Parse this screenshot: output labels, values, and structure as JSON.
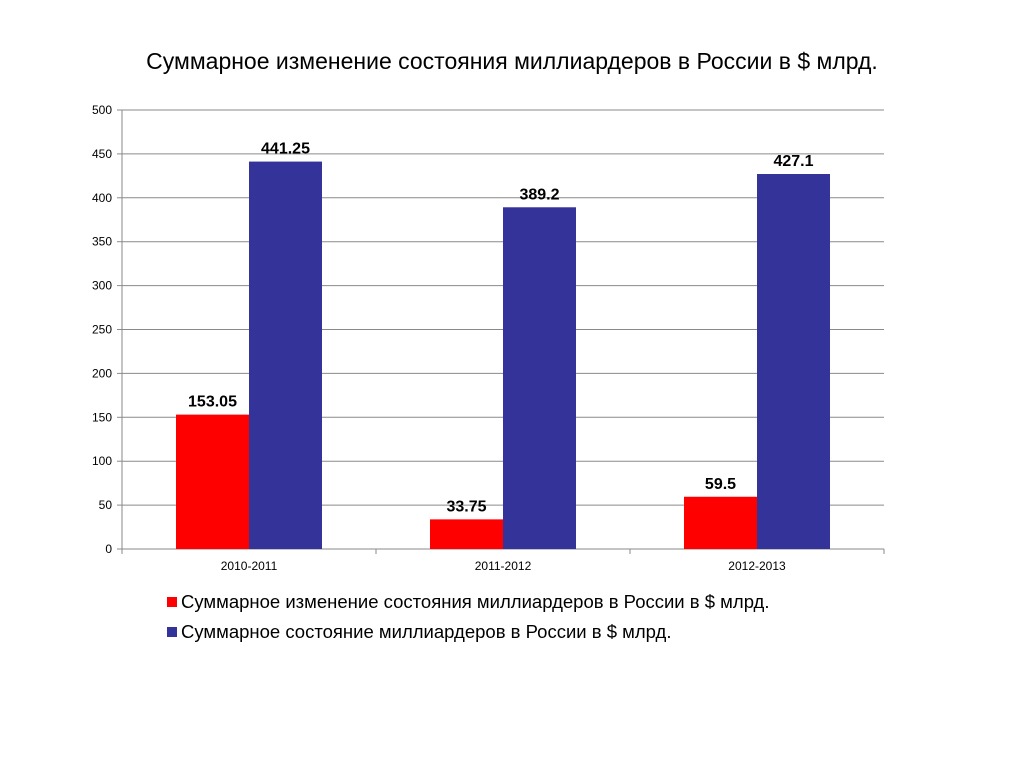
{
  "chart_data": {
    "type": "bar",
    "title": "Суммарное изменение состояния миллиардеров в России в $ млрд.",
    "categories": [
      "2010-2011",
      "2011-2012",
      "2012-2013"
    ],
    "series": [
      {
        "name": "Суммарное изменение состояния миллиардеров в России в $ млрд.",
        "values": [
          153.05,
          33.75,
          59.5
        ],
        "labels": [
          "153.05",
          "33.75",
          "59.5"
        ],
        "color": "#ff0000"
      },
      {
        "name": "Суммарное состояние миллиардеров в России в $ млрд.",
        "values": [
          441.25,
          389.2,
          427.1
        ],
        "labels": [
          "441.25",
          "389.2",
          "427.1"
        ],
        "color": "#333399"
      }
    ],
    "ylim": [
      0,
      500
    ],
    "yticks": [
      0,
      50,
      100,
      150,
      200,
      250,
      300,
      350,
      400,
      450,
      500
    ],
    "grid": true,
    "legend_position": "bottom"
  }
}
